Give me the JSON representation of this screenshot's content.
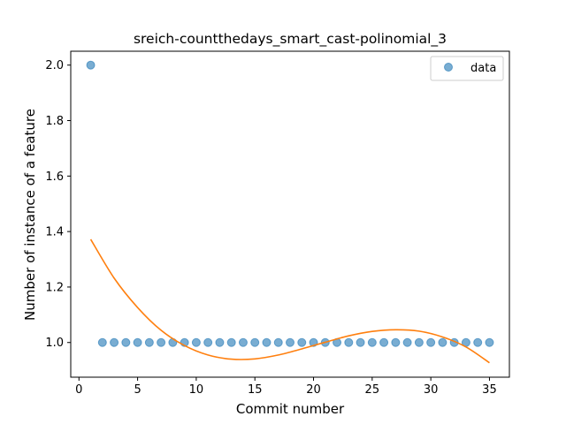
{
  "chart_data": {
    "type": "scatter",
    "title": "sreich-countthedays_smart_cast-polinomial_3",
    "xlabel": "Commit number",
    "ylabel": "Number of instance of a feature",
    "xlim": [
      -0.7,
      36.7
    ],
    "ylim": [
      0.875,
      2.05
    ],
    "xticks": [
      0,
      5,
      10,
      15,
      20,
      25,
      30,
      35
    ],
    "yticks": [
      1.0,
      1.2,
      1.4,
      1.6,
      1.8,
      2.0
    ],
    "xtick_labels": [
      "0",
      "5",
      "10",
      "15",
      "20",
      "25",
      "30",
      "35"
    ],
    "ytick_labels": [
      "1.0",
      "1.2",
      "1.4",
      "1.6",
      "1.8",
      "2.0"
    ],
    "grid": false,
    "legend": {
      "placement": "top-right",
      "entries": [
        "data"
      ]
    },
    "series": [
      {
        "name": "data",
        "kind": "scatter",
        "color": "#1f77b4",
        "x": [
          1,
          2,
          3,
          4,
          5,
          6,
          7,
          8,
          9,
          10,
          11,
          12,
          13,
          14,
          15,
          16,
          17,
          18,
          19,
          20,
          21,
          22,
          23,
          24,
          25,
          26,
          27,
          28,
          29,
          30,
          31,
          32,
          33,
          34,
          35
        ],
        "y": [
          2,
          1,
          1,
          1,
          1,
          1,
          1,
          1,
          1,
          1,
          1,
          1,
          1,
          1,
          1,
          1,
          1,
          1,
          1,
          1,
          1,
          1,
          1,
          1,
          1,
          1,
          1,
          1,
          1,
          1,
          1,
          1,
          1,
          1,
          1
        ]
      },
      {
        "kind": "line",
        "color": "#ff7f0e",
        "x": [
          1,
          3,
          5,
          7,
          9,
          11,
          13,
          15,
          17,
          19,
          21,
          23,
          25,
          27,
          29,
          31,
          33,
          35
        ],
        "y": [
          1.372,
          1.232,
          1.126,
          1.044,
          0.989,
          0.955,
          0.94,
          0.941,
          0.955,
          0.977,
          1.001,
          1.024,
          1.04,
          1.046,
          1.041,
          1.02,
          0.984,
          0.927
        ]
      }
    ]
  }
}
